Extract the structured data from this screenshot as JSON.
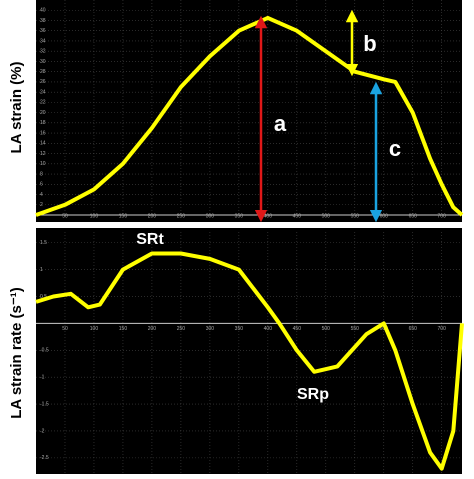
{
  "chart_data": [
    {
      "type": "line",
      "ylabel": "LA strain (%)",
      "x": [
        0,
        50,
        100,
        150,
        200,
        250,
        300,
        350,
        400,
        450,
        500,
        550,
        600,
        620,
        650,
        680,
        700,
        720,
        735
      ],
      "values": [
        0,
        2,
        5,
        10,
        17,
        25,
        31,
        36,
        38.5,
        36,
        32,
        28,
        26.5,
        26,
        20,
        11,
        6,
        1.5,
        0
      ],
      "color": "#ffff00",
      "xlim": [
        0,
        735
      ],
      "xticks": [
        50,
        100,
        150,
        200,
        250,
        300,
        350,
        400,
        450,
        500,
        550,
        600,
        650,
        700
      ],
      "ylim": [
        0,
        42
      ],
      "yticks": [
        2,
        4,
        6,
        8,
        10,
        12,
        14,
        16,
        18,
        20,
        22,
        24,
        26,
        28,
        30,
        32,
        34,
        36,
        38,
        40
      ],
      "grid": true,
      "annotations": [
        "a",
        "b",
        "c"
      ]
    },
    {
      "type": "line",
      "ylabel": "LA strain rate (s⁻¹)",
      "x": [
        0,
        30,
        60,
        90,
        110,
        150,
        200,
        250,
        300,
        350,
        400,
        420,
        450,
        480,
        520,
        570,
        600,
        620,
        650,
        680,
        700,
        720,
        735
      ],
      "values": [
        0.4,
        0.5,
        0.55,
        0.3,
        0.35,
        1.0,
        1.3,
        1.3,
        1.2,
        1.0,
        0.3,
        0,
        -0.5,
        -0.9,
        -0.8,
        -0.2,
        0,
        -0.5,
        -1.5,
        -2.4,
        -2.7,
        -2.0,
        0
      ],
      "color": "#ffff00",
      "xlim": [
        0,
        735
      ],
      "xticks": [
        50,
        100,
        150,
        200,
        250,
        300,
        350,
        400,
        450,
        500,
        550,
        600,
        650,
        700
      ],
      "ylim": [
        -2.8,
        1.7
      ],
      "yticks": [
        -2.5,
        -2,
        -1.5,
        -1,
        -0.5,
        0.5,
        1,
        1.5
      ],
      "grid": true,
      "annotations": [
        "SRt",
        "SRp"
      ]
    }
  ]
}
